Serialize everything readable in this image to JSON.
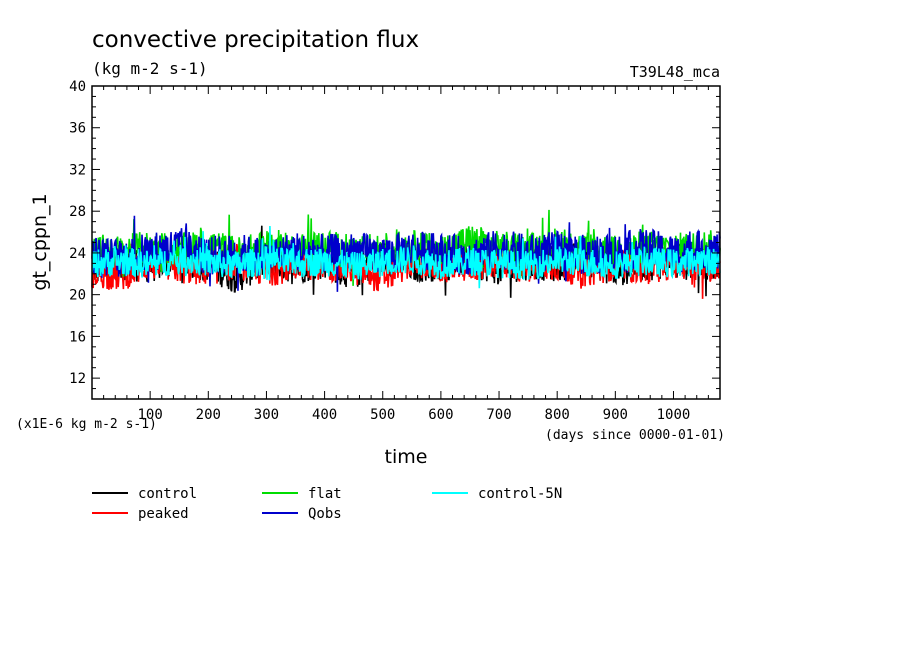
{
  "chart_data": {
    "type": "line",
    "title": "convective precipitation flux",
    "subtitle": "(kg m-2 s-1)",
    "run_label": "T39L48_mca",
    "xlabel": "time",
    "x_units_note": "(days since 0000-01-01)",
    "ylabel": "gt_cppn_1",
    "y_scale_note": "(x1E-6 kg m-2 s-1)",
    "xlim": [
      0,
      1080
    ],
    "ylim": [
      10,
      40
    ],
    "x_ticks": [
      100,
      200,
      300,
      400,
      500,
      600,
      700,
      800,
      900,
      1000
    ],
    "y_ticks": [
      12,
      16,
      20,
      24,
      28,
      32,
      36,
      40
    ],
    "legend_placement": "bottom",
    "series": [
      {
        "name": "control",
        "color": "#000000",
        "x": [
          0,
          50,
          100,
          150,
          200,
          250,
          300,
          350,
          400,
          450,
          500,
          550,
          600,
          650,
          700,
          750,
          800,
          850,
          900,
          950,
          1000,
          1050,
          1080
        ],
        "values": [
          22.5,
          23.1,
          22.8,
          23.5,
          22.9,
          21.8,
          23.4,
          22.7,
          23.2,
          22.1,
          23.6,
          22.8,
          23.0,
          23.4,
          22.6,
          23.1,
          22.9,
          23.5,
          22.4,
          23.0,
          23.3,
          22.8,
          23.1
        ]
      },
      {
        "name": "peaked",
        "color": "#ff0000",
        "x": [
          0,
          50,
          100,
          150,
          200,
          250,
          300,
          350,
          400,
          450,
          500,
          550,
          600,
          650,
          700,
          750,
          800,
          850,
          900,
          950,
          1000,
          1050,
          1080
        ],
        "values": [
          22.2,
          21.9,
          23.0,
          22.6,
          22.4,
          23.1,
          22.3,
          22.9,
          23.0,
          22.5,
          21.7,
          23.2,
          22.7,
          22.8,
          23.3,
          22.6,
          22.9,
          22.3,
          23.0,
          22.5,
          23.1,
          22.7,
          22.9
        ]
      },
      {
        "name": "flat",
        "color": "#00dd00",
        "x": [
          0,
          50,
          100,
          150,
          200,
          250,
          300,
          350,
          400,
          450,
          500,
          550,
          600,
          650,
          700,
          750,
          800,
          850,
          900,
          950,
          1000,
          1050,
          1080
        ],
        "values": [
          24.3,
          24.1,
          24.6,
          24.2,
          24.8,
          24.0,
          24.5,
          24.3,
          24.7,
          24.1,
          24.4,
          24.6,
          24.2,
          25.2,
          24.5,
          24.3,
          24.9,
          24.4,
          24.1,
          24.6,
          24.3,
          24.7,
          24.5
        ]
      },
      {
        "name": "Qobs",
        "color": "#0000cc",
        "x": [
          0,
          50,
          100,
          150,
          200,
          250,
          300,
          350,
          400,
          450,
          500,
          550,
          600,
          650,
          700,
          750,
          800,
          850,
          900,
          950,
          1000,
          1050,
          1080
        ],
        "values": [
          23.8,
          23.5,
          24.1,
          24.6,
          23.7,
          24.0,
          23.6,
          24.2,
          23.9,
          24.1,
          23.8,
          24.3,
          24.0,
          23.7,
          24.4,
          23.9,
          24.2,
          23.8,
          24.0,
          24.5,
          23.9,
          24.3,
          24.1
        ]
      },
      {
        "name": "control-5N",
        "color": "#00ffff",
        "x": [
          0,
          50,
          100,
          150,
          200,
          250,
          300,
          350,
          400,
          450,
          500,
          550,
          600,
          650,
          700,
          750,
          800,
          850,
          900,
          950,
          1000,
          1050,
          1080
        ],
        "values": [
          23.0,
          23.2,
          22.9,
          23.4,
          23.1,
          22.8,
          23.3,
          23.0,
          23.2,
          22.7,
          23.1,
          23.4,
          22.9,
          23.2,
          23.0,
          22.8,
          23.3,
          23.1,
          22.9,
          23.2,
          23.0,
          23.3,
          23.1
        ]
      }
    ]
  }
}
